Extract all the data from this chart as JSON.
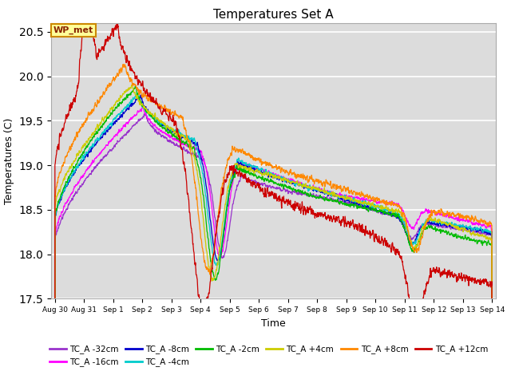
{
  "title": "Temperatures Set A",
  "xlabel": "Time",
  "ylabel": "Temperatures (C)",
  "ylim": [
    17.5,
    20.6
  ],
  "background_color": "#dcdcdc",
  "fig_background": "#ffffff",
  "grid_color": "#ffffff",
  "series": [
    {
      "label": "TC_A -32cm",
      "color": "#9933cc"
    },
    {
      "label": "TC_A -16cm",
      "color": "#ff00ff"
    },
    {
      "label": "TC_A -8cm",
      "color": "#0000cc"
    },
    {
      "label": "TC_A -4cm",
      "color": "#00cccc"
    },
    {
      "label": "TC_A -2cm",
      "color": "#00bb00"
    },
    {
      "label": "TC_A +4cm",
      "color": "#cccc00"
    },
    {
      "label": "TC_A +8cm",
      "color": "#ff8800"
    },
    {
      "label": "TC_A +12cm",
      "color": "#cc0000"
    }
  ],
  "xtick_labels": [
    "Aug 30",
    "Aug 31",
    "Sep 1",
    "Sep 2",
    "Sep 3",
    "Sep 4",
    "Sep 5",
    "Sep 6",
    "Sep 7",
    "Sep 8",
    "Sep 9",
    "Sep 10",
    "Sep 11",
    "Sep 12",
    "Sep 13",
    "Sep 14"
  ],
  "xtick_positions": [
    0,
    24,
    48,
    72,
    96,
    120,
    144,
    168,
    192,
    216,
    240,
    264,
    288,
    312,
    336,
    360
  ],
  "wp_met_label": "WP_met",
  "wp_met_color_bg": "#ffff99",
  "wp_met_color_border": "#cc8800",
  "wp_met_color_text": "#882200"
}
